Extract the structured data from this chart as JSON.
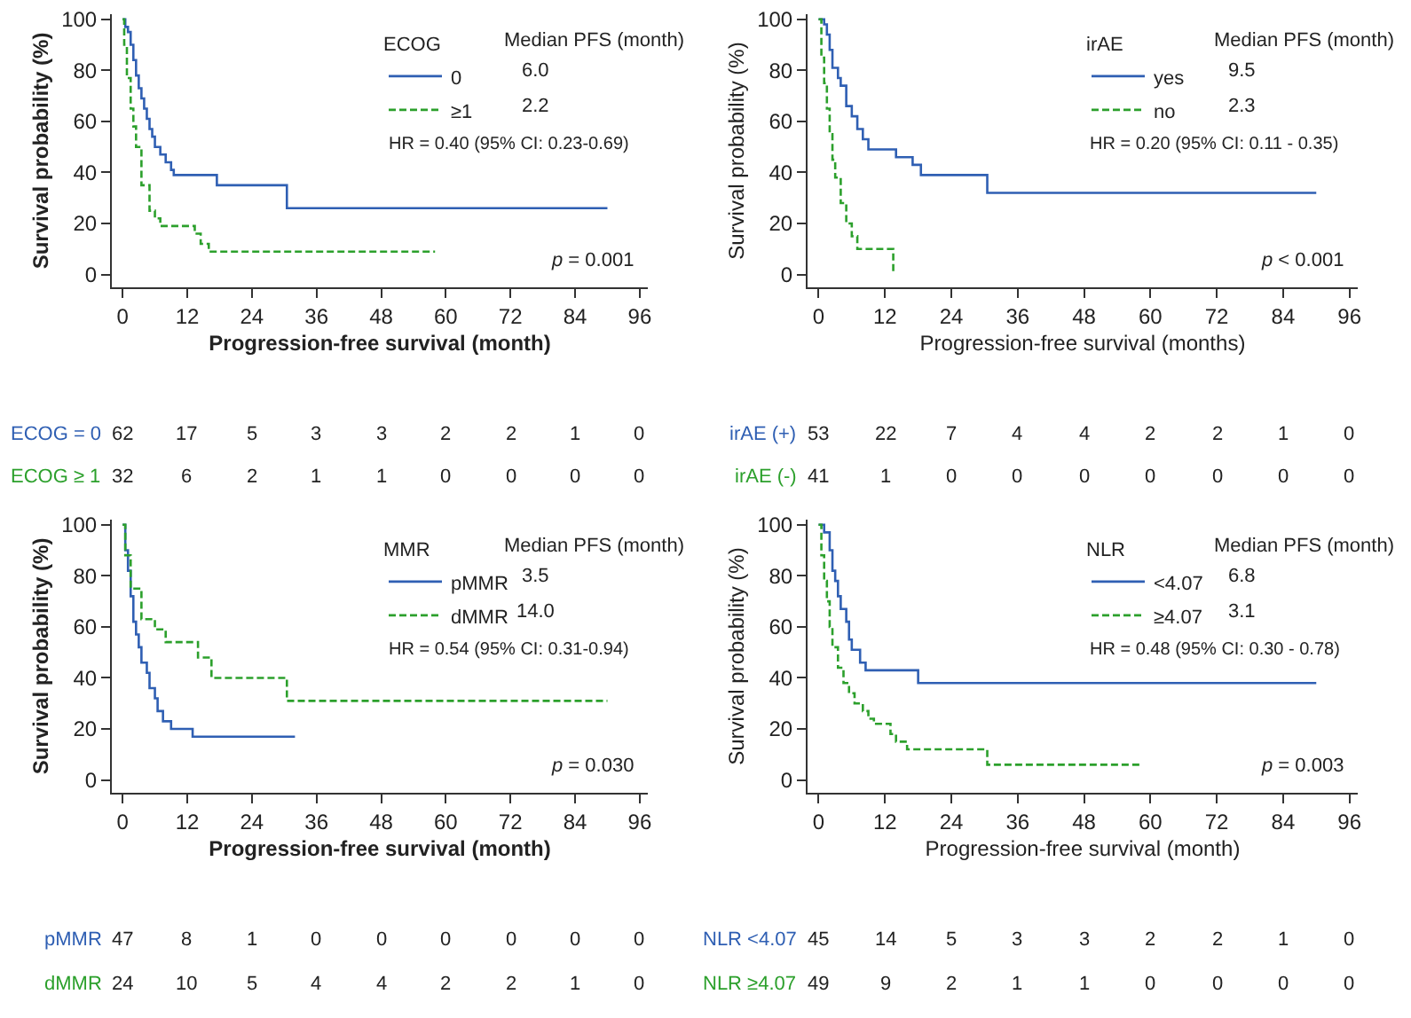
{
  "chart_data": [
    {
      "type": "step",
      "xlabel": "Progression-free survival (month)",
      "ylabel": "Survival probability (%)",
      "legend_title": "ECOG",
      "legend": "top right",
      "xlim": [
        -2,
        97.5
      ],
      "xticks": [
        0,
        12,
        24,
        36,
        48,
        60,
        72,
        84,
        96
      ],
      "ylim": [
        -5,
        102
      ],
      "yticks": [
        0,
        20,
        40,
        60,
        80,
        100
      ],
      "series": [
        {
          "name": "0",
          "color": "#2f5fb3",
          "line_style": "solid",
          "x": [
            0,
            0.5,
            1,
            1.5,
            2,
            2.5,
            3,
            3.5,
            4,
            4.5,
            5,
            5.5,
            6,
            7,
            8,
            9,
            9.5,
            17.5,
            30.5,
            90
          ],
          "values": [
            100,
            97,
            95,
            90,
            84,
            78,
            73,
            69,
            65,
            61,
            57,
            54,
            50,
            47,
            44,
            41,
            39,
            35,
            26,
            26
          ]
        },
        {
          "name": "≥1",
          "color": "#2ca02c",
          "line_style": "dashed",
          "x": [
            0,
            0.3,
            0.8,
            1.5,
            2,
            2.5,
            3.5,
            5,
            6,
            7,
            13.4,
            14.5,
            16,
            58
          ],
          "values": [
            100,
            90,
            77,
            65,
            58,
            50,
            35,
            25,
            22,
            19,
            16,
            12,
            9,
            9
          ]
        }
      ],
      "annotations": [
        "Median PFS (month)",
        "6.0",
        "2.2",
        "HR = 0.40 (95% CI: 0.23-0.69)",
        "p = 0.001",
        "ECOG = 0",
        "62 17 5 3 3 2 2 1 0",
        "ECOG ≥ 1",
        "32 6 2 1 1 0 0 0 0"
      ]
    },
    {
      "type": "step",
      "xlabel": "Progression-free survival (months)",
      "ylabel": "Survival probability (%)",
      "legend_title": "irAE",
      "legend": "top right",
      "xlim": [
        -2,
        97.5
      ],
      "xticks": [
        0,
        12,
        24,
        36,
        48,
        60,
        72,
        84,
        96
      ],
      "ylim": [
        -5,
        102
      ],
      "yticks": [
        0,
        20,
        40,
        60,
        80,
        100
      ],
      "series": [
        {
          "name": "yes",
          "color": "#2f5fb3",
          "line_style": "solid",
          "x": [
            0,
            1,
            1.5,
            2,
            2.5,
            3.5,
            4,
            5,
            6,
            7,
            8,
            9,
            14,
            17,
            18.5,
            30.5,
            90
          ],
          "values": [
            100,
            98,
            94,
            88,
            81,
            77,
            74,
            66,
            62,
            57,
            53,
            49,
            46,
            43,
            39,
            32,
            32
          ]
        },
        {
          "name": "no",
          "color": "#2ca02c",
          "line_style": "dashed",
          "x": [
            0,
            0.5,
            1,
            1.5,
            2,
            2.5,
            3,
            4,
            5,
            6,
            7,
            13.5
          ],
          "values": [
            100,
            85,
            75,
            65,
            55,
            45,
            38,
            28,
            20,
            15,
            10,
            0
          ]
        }
      ],
      "annotations": [
        "Median PFS (month)",
        "9.5",
        "2.3",
        "HR = 0.20 (95% CI: 0.11 - 0.35)",
        "p < 0.001",
        "irAE (+)",
        "53 22 7 4 4 2 2 1 0",
        "irAE (-)",
        "41 1 0 0 0 0 0 0 0"
      ]
    },
    {
      "type": "step",
      "xlabel": "Progression-free survival (month)",
      "ylabel": "Survival probability (%)",
      "legend_title": "MMR",
      "legend": "top right",
      "xlim": [
        -2,
        97.5
      ],
      "xticks": [
        0,
        12,
        24,
        36,
        48,
        60,
        72,
        84,
        96
      ],
      "ylim": [
        -5,
        102
      ],
      "yticks": [
        0,
        20,
        40,
        60,
        80,
        100
      ],
      "series": [
        {
          "name": "pMMR",
          "color": "#2f5fb3",
          "line_style": "solid",
          "x": [
            0,
            0.5,
            1,
            1.5,
            2,
            2.5,
            3,
            3.5,
            4.5,
            5,
            6,
            6.5,
            7.5,
            9,
            13,
            32
          ],
          "values": [
            100,
            90,
            82,
            72,
            62,
            57,
            52,
            46,
            42,
            36,
            32,
            27,
            23,
            20,
            17,
            17
          ]
        },
        {
          "name": "dMMR",
          "color": "#2ca02c",
          "line_style": "dashed",
          "x": [
            0,
            0.5,
            1.5,
            3.5,
            6,
            8,
            14,
            16.5,
            30.5,
            90
          ],
          "values": [
            100,
            88,
            75,
            63,
            59,
            54,
            48,
            40,
            31,
            31
          ]
        }
      ],
      "annotations": [
        "Median PFS (month)",
        "3.5",
        "14.0",
        "HR = 0.54 (95% CI: 0.31-0.94)",
        "p = 0.030",
        "pMMR",
        "47 8 1 0 0 0 0 0 0",
        "dMMR",
        "24 10 5 4 4 2 2 1 0"
      ]
    },
    {
      "type": "step",
      "xlabel": "Progression-free survival (month)",
      "ylabel": "Survival probability (%)",
      "legend_title": "NLR",
      "legend": "top right",
      "xlim": [
        -2,
        97.5
      ],
      "xticks": [
        0,
        12,
        24,
        36,
        48,
        60,
        72,
        84,
        96
      ],
      "ylim": [
        -5,
        102
      ],
      "yticks": [
        0,
        20,
        40,
        60,
        80,
        100
      ],
      "series": [
        {
          "name": "<4.07",
          "color": "#2f5fb3",
          "line_style": "solid",
          "x": [
            0,
            1,
            2,
            2.5,
            3,
            3.5,
            4,
            5,
            5.5,
            6,
            7.5,
            8.5,
            18,
            90
          ],
          "values": [
            100,
            97,
            90,
            82,
            78,
            72,
            67,
            62,
            55,
            51,
            46,
            43,
            38,
            38
          ]
        },
        {
          "name": "≥4.07",
          "color": "#2ca02c",
          "line_style": "dashed",
          "x": [
            0,
            0.5,
            1,
            1.5,
            2,
            2.5,
            3.5,
            4.5,
            5.5,
            6.5,
            8,
            9,
            10,
            13,
            14,
            16,
            30.5,
            58
          ],
          "values": [
            100,
            88,
            78,
            70,
            60,
            52,
            44,
            38,
            34,
            30,
            27,
            24,
            22,
            18,
            15,
            12,
            6,
            6
          ]
        }
      ],
      "annotations": [
        "Median PFS (month)",
        "6.8",
        "3.1",
        "HR = 0.48 (95% CI: 0.30 - 0.78)",
        "p = 0.003",
        "NLR <4.07",
        "45 14 5 3 3 2 2 1 0",
        "NLR ≥4.07",
        "49 9 2 1 1 0 0 0 0"
      ]
    }
  ]
}
